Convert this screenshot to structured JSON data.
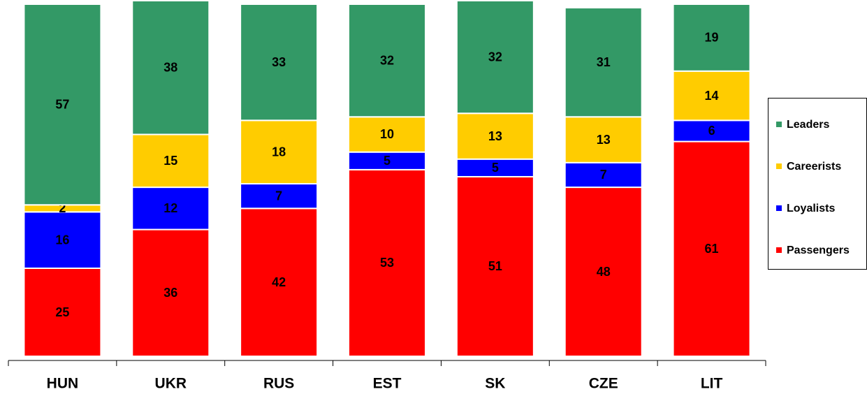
{
  "chart_data": {
    "type": "stacked_bar",
    "categories": [
      "HUN",
      "UKR",
      "RUS",
      "EST",
      "SK",
      "CZE",
      "LIT"
    ],
    "series": [
      {
        "name": "Passengers",
        "color": "#ff0000",
        "values": [
          25,
          36,
          42,
          53,
          51,
          48,
          61
        ]
      },
      {
        "name": "Loyalists",
        "color": "#0000ff",
        "values": [
          16,
          12,
          7,
          5,
          5,
          7,
          6
        ]
      },
      {
        "name": "Careerists",
        "color": "#ffcc00",
        "values": [
          2,
          15,
          18,
          10,
          13,
          13,
          14
        ]
      },
      {
        "name": "Leaders",
        "color": "#339966",
        "values": [
          57,
          38,
          33,
          32,
          32,
          31,
          19
        ]
      }
    ],
    "ylim": [
      0,
      100
    ],
    "legend": "right"
  }
}
